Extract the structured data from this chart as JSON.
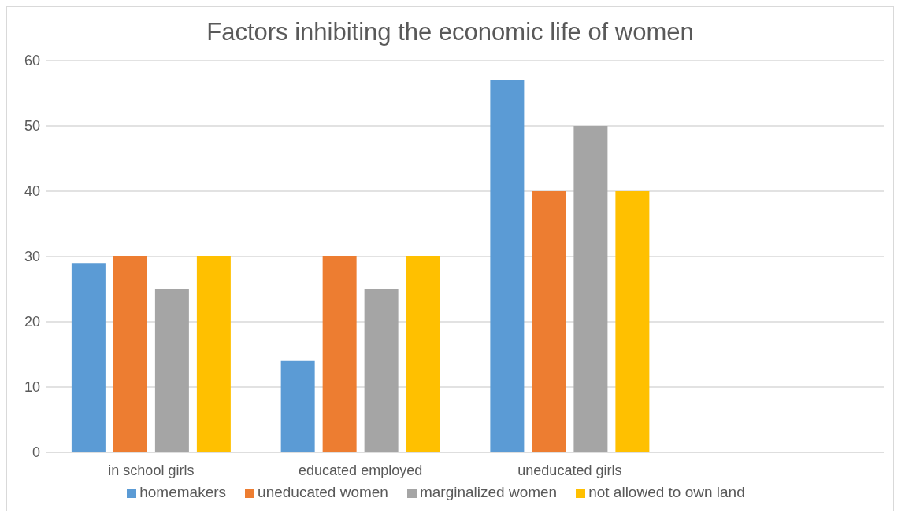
{
  "chart_data": {
    "type": "bar",
    "title": "Factors inhibiting the economic life of women",
    "categories": [
      "in school girls",
      "educated employed",
      "uneducated girls",
      null
    ],
    "series": [
      {
        "name": "homemakers",
        "color": "#5b9bd5",
        "values": [
          29,
          14,
          57,
          null
        ]
      },
      {
        "name": "uneducated women",
        "color": "#ed7d31",
        "values": [
          30,
          30,
          40,
          null
        ]
      },
      {
        "name": "marginalized women",
        "color": "#a5a5a5",
        "values": [
          25,
          25,
          50,
          null
        ]
      },
      {
        "name": "not allowed to own land",
        "color": "#ffc000",
        "values": [
          30,
          30,
          40,
          null
        ]
      }
    ],
    "ylim": [
      0,
      60
    ],
    "yticks": [
      0,
      10,
      20,
      30,
      40,
      50,
      60
    ],
    "grid": "y",
    "legend": "bottom"
  }
}
